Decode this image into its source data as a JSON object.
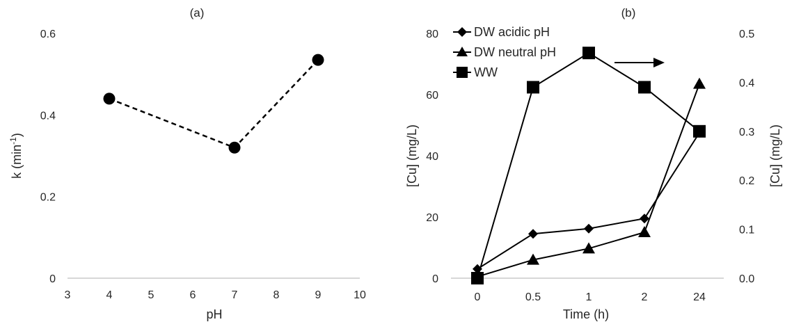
{
  "chart_data": [
    {
      "type": "scatter",
      "title": "(a)",
      "xlabel": "pH",
      "ylabel": "k (min",
      "ylabel_sup": "-1",
      "ylabel_end": ")",
      "xlim": [
        3,
        10
      ],
      "ylim": [
        0,
        0.6
      ],
      "xticks": [
        "3",
        "4",
        "5",
        "6",
        "7",
        "8",
        "9",
        "10"
      ],
      "yticks": [
        "0",
        "0.2",
        "0.4",
        "0.6"
      ],
      "grid": false,
      "series": [
        {
          "x": [
            4,
            7,
            9
          ],
          "y": [
            0.44,
            0.32,
            0.535
          ],
          "line": "dashed",
          "marker": "circle"
        }
      ]
    },
    {
      "type": "line",
      "title": "(b)",
      "xlabel": "Time (h)",
      "ylabel": "[Cu] (mg/L)",
      "y2label": "[Cu] (mg/L)",
      "categories": [
        "0",
        "0.5",
        "1",
        "2",
        "24"
      ],
      "ylim": [
        0,
        80
      ],
      "y2lim": [
        0,
        0.5
      ],
      "yticks": [
        "0",
        "20",
        "40",
        "60",
        "80"
      ],
      "y2ticks": [
        "0.0",
        "0.1",
        "0.2",
        "0.3",
        "0.4",
        "0.5"
      ],
      "grid": false,
      "legend_position": "top-left",
      "series": [
        {
          "name": "DW acidic pH",
          "axis": "left",
          "marker": "diamond",
          "values": [
            3,
            14.5,
            16.2,
            19.5,
            47.5
          ]
        },
        {
          "name": "DW neutral pH",
          "axis": "left",
          "marker": "triangle",
          "values": [
            0.5,
            6,
            9.7,
            15,
            63.5
          ]
        },
        {
          "name": "WW",
          "axis": "right",
          "marker": "square",
          "values": [
            0.0,
            0.39,
            0.46,
            0.39,
            0.3
          ]
        }
      ],
      "annotation": "arrow pointing to right axis"
    }
  ]
}
